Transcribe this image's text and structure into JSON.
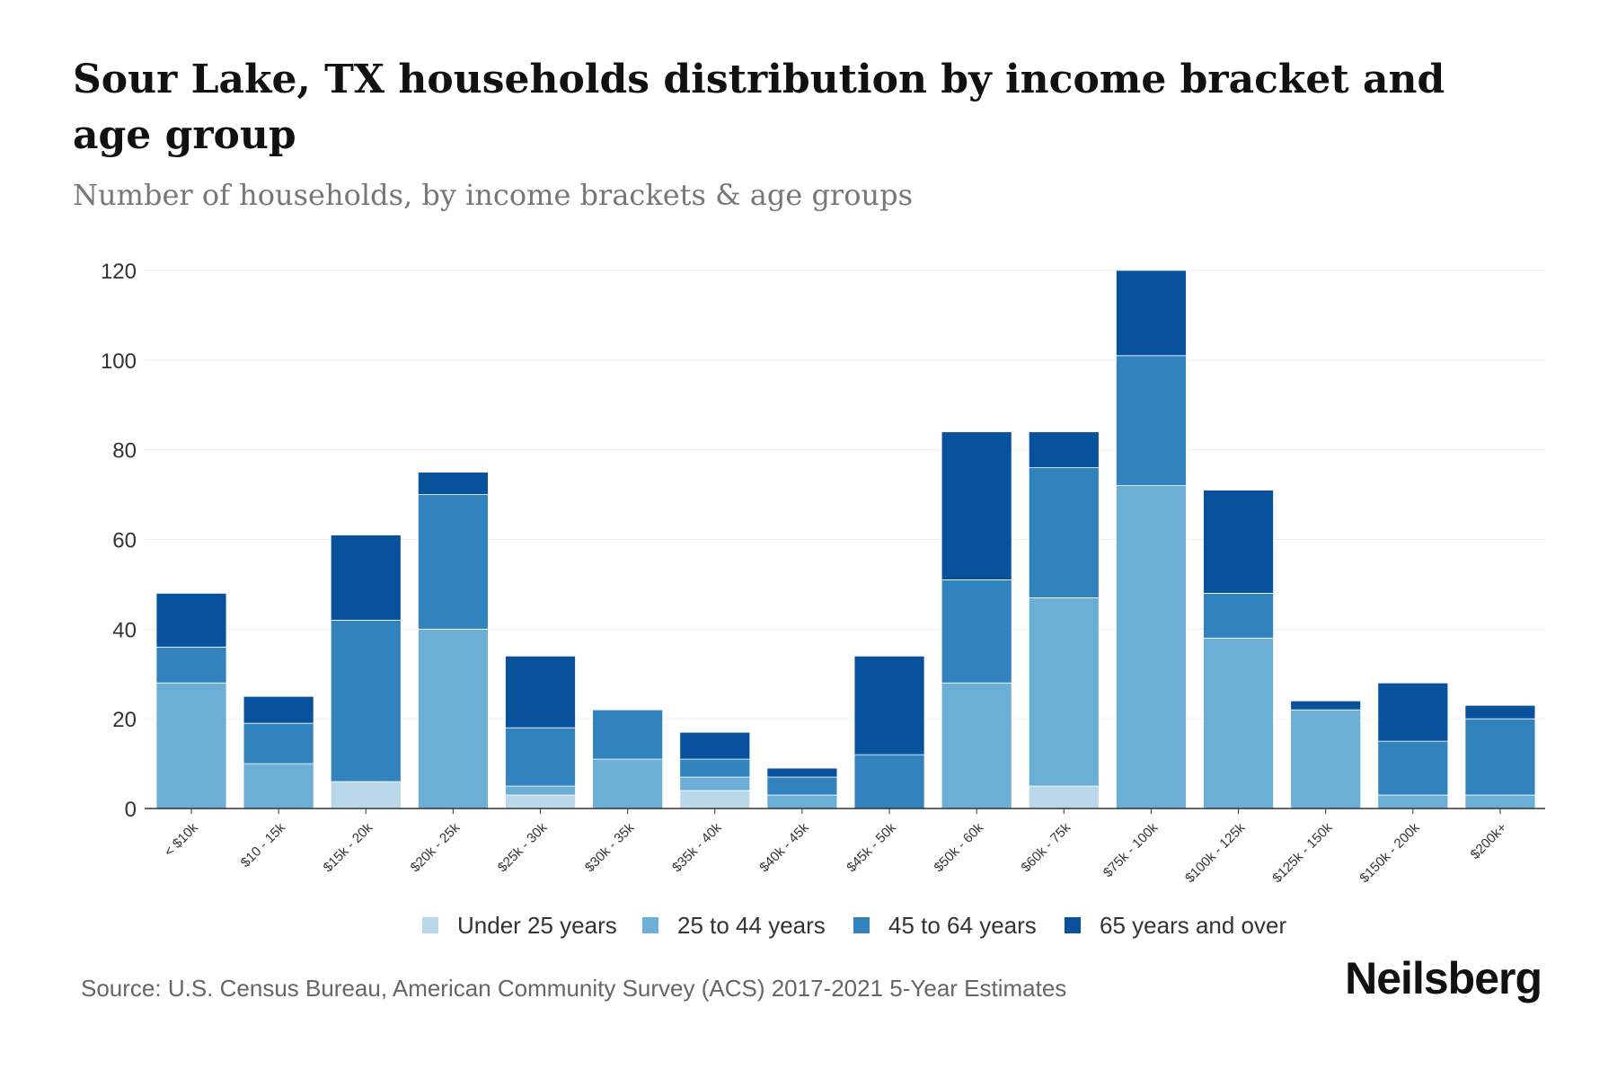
{
  "header": {
    "title": "Sour Lake, TX households distribution by income bracket and age group",
    "subtitle": "Number of households, by income brackets & age groups"
  },
  "footer": {
    "source": "Source: U.S. Census Bureau, American Community Survey (ACS) 2017-2021 5-Year Estimates",
    "logo": "Neilsberg"
  },
  "chart_data": {
    "type": "bar",
    "stacked": true,
    "title": "Sour Lake, TX households distribution by income bracket and age group",
    "ylabel": "Number of households",
    "xlabel": "",
    "ylim": [
      0,
      120
    ],
    "yticks": [
      0,
      20,
      40,
      60,
      80,
      100,
      120
    ],
    "grid": true,
    "legend": "bottom",
    "categories": [
      "< $10k",
      "$10 - 15k",
      "$15k - 20k",
      "$20k - 25k",
      "$25k - 30k",
      "$30k - 35k",
      "$35k - 40k",
      "$40k - 45k",
      "$45k - 50k",
      "$50k - 60k",
      "$60k - 75k",
      "$75k - 100k",
      "$100k - 125k",
      "$125k - 150k",
      "$150k - 200k",
      "$200k+"
    ],
    "series": [
      {
        "name": "Under 25 years",
        "color": "#b9d9ea",
        "values": [
          0,
          0,
          6,
          0,
          3,
          0,
          4,
          0,
          0,
          0,
          5,
          0,
          0,
          0,
          0,
          0
        ]
      },
      {
        "name": "25 to 44 years",
        "color": "#6baed6",
        "values": [
          28,
          10,
          0,
          40,
          2,
          11,
          3,
          3,
          0,
          28,
          42,
          72,
          38,
          22,
          3,
          3
        ]
      },
      {
        "name": "45 to 64 years",
        "color": "#3182bd",
        "values": [
          8,
          9,
          36,
          30,
          13,
          11,
          4,
          4,
          12,
          23,
          29,
          29,
          10,
          0,
          12,
          17
        ]
      },
      {
        "name": "65 years and over",
        "color": "#08519c",
        "values": [
          12,
          6,
          19,
          5,
          16,
          0,
          6,
          2,
          22,
          33,
          8,
          19,
          23,
          2,
          13,
          3
        ]
      }
    ]
  }
}
